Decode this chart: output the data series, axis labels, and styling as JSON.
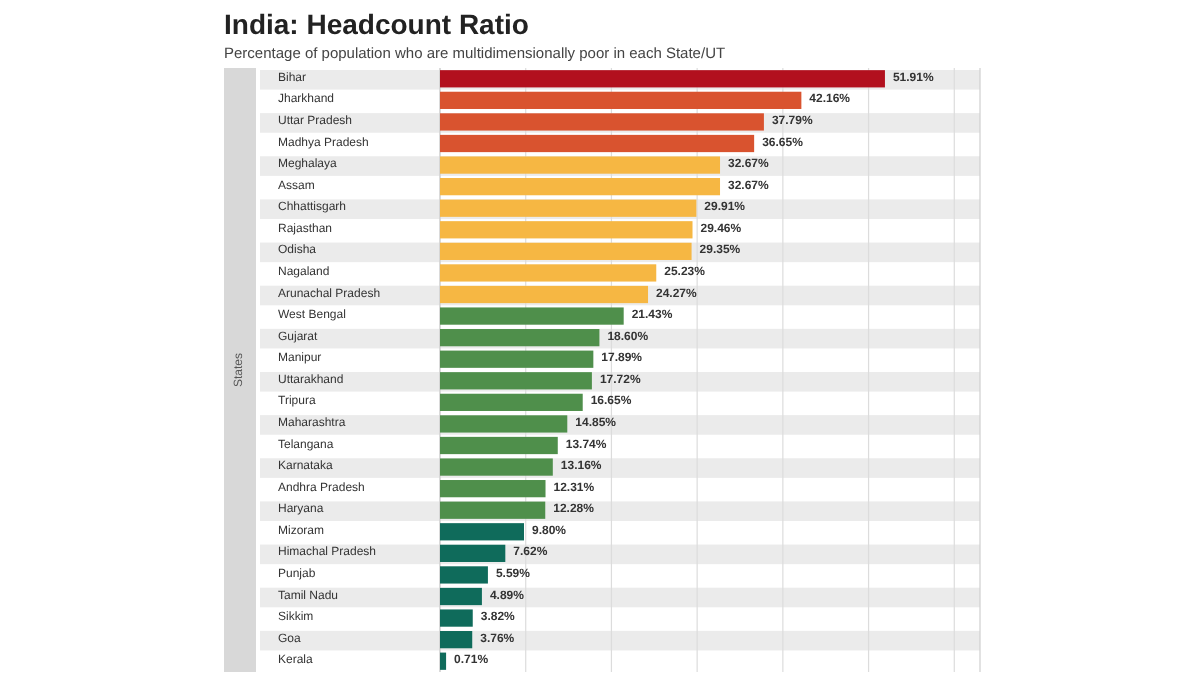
{
  "chart_data": {
    "type": "bar",
    "orientation": "horizontal",
    "title": "India: Headcount Ratio",
    "subtitle": "Percentage of population who are multidimensionally poor in each State/UT",
    "ylabel": "States",
    "categories": [
      "Bihar",
      "Jharkhand",
      "Uttar Pradesh",
      "Madhya Pradesh",
      "Meghalaya",
      "Assam",
      "Chhattisgarh",
      "Rajasthan",
      "Odisha",
      "Nagaland",
      "Arunachal Pradesh",
      "West Bengal",
      "Gujarat",
      "Manipur",
      "Uttarakhand",
      "Tripura",
      "Maharashtra",
      "Telangana",
      "Karnataka",
      "Andhra Pradesh",
      "Haryana",
      "Mizoram",
      "Himachal Pradesh",
      "Punjab",
      "Tamil Nadu",
      "Sikkim",
      "Goa",
      "Kerala"
    ],
    "values": [
      51.91,
      42.16,
      37.79,
      36.65,
      32.67,
      32.67,
      29.91,
      29.46,
      29.35,
      25.23,
      24.27,
      21.43,
      18.6,
      17.89,
      17.72,
      16.65,
      14.85,
      13.74,
      13.16,
      12.31,
      12.28,
      9.8,
      7.62,
      5.59,
      4.89,
      3.82,
      3.76,
      0.71
    ],
    "value_labels": [
      "51.91%",
      "42.16%",
      "37.79%",
      "36.65%",
      "32.67%",
      "32.67%",
      "29.91%",
      "29.46%",
      "29.35%",
      "25.23%",
      "24.27%",
      "21.43%",
      "18.60%",
      "17.89%",
      "17.72%",
      "16.65%",
      "14.85%",
      "13.74%",
      "13.16%",
      "12.31%",
      "12.28%",
      "9.80%",
      "7.62%",
      "5.59%",
      "4.89%",
      "3.82%",
      "3.76%",
      "0.71%"
    ],
    "colors": [
      "#b2101e",
      "#d9532f",
      "#d9532f",
      "#d9532f",
      "#f6b743",
      "#f6b743",
      "#f6b743",
      "#f6b743",
      "#f6b743",
      "#f6b743",
      "#f6b743",
      "#4f8f4b",
      "#4f8f4b",
      "#4f8f4b",
      "#4f8f4b",
      "#4f8f4b",
      "#4f8f4b",
      "#4f8f4b",
      "#4f8f4b",
      "#4f8f4b",
      "#4f8f4b",
      "#0f6b5b",
      "#0f6b5b",
      "#0f6b5b",
      "#0f6b5b",
      "#0f6b5b",
      "#0f6b5b",
      "#0f6b5b"
    ],
    "xlim": [
      0,
      63
    ],
    "xticks": [
      {
        "value": 0,
        "label": null
      },
      {
        "value": 10,
        "label": null
      },
      {
        "value": 20,
        "label": null
      },
      {
        "value": 30,
        "label": null
      },
      {
        "value": 40,
        "label": null
      },
      {
        "value": 50,
        "label": null
      },
      {
        "value": 60,
        "label": null
      }
    ],
    "grid": "x",
    "tick_labels": "y"
  }
}
